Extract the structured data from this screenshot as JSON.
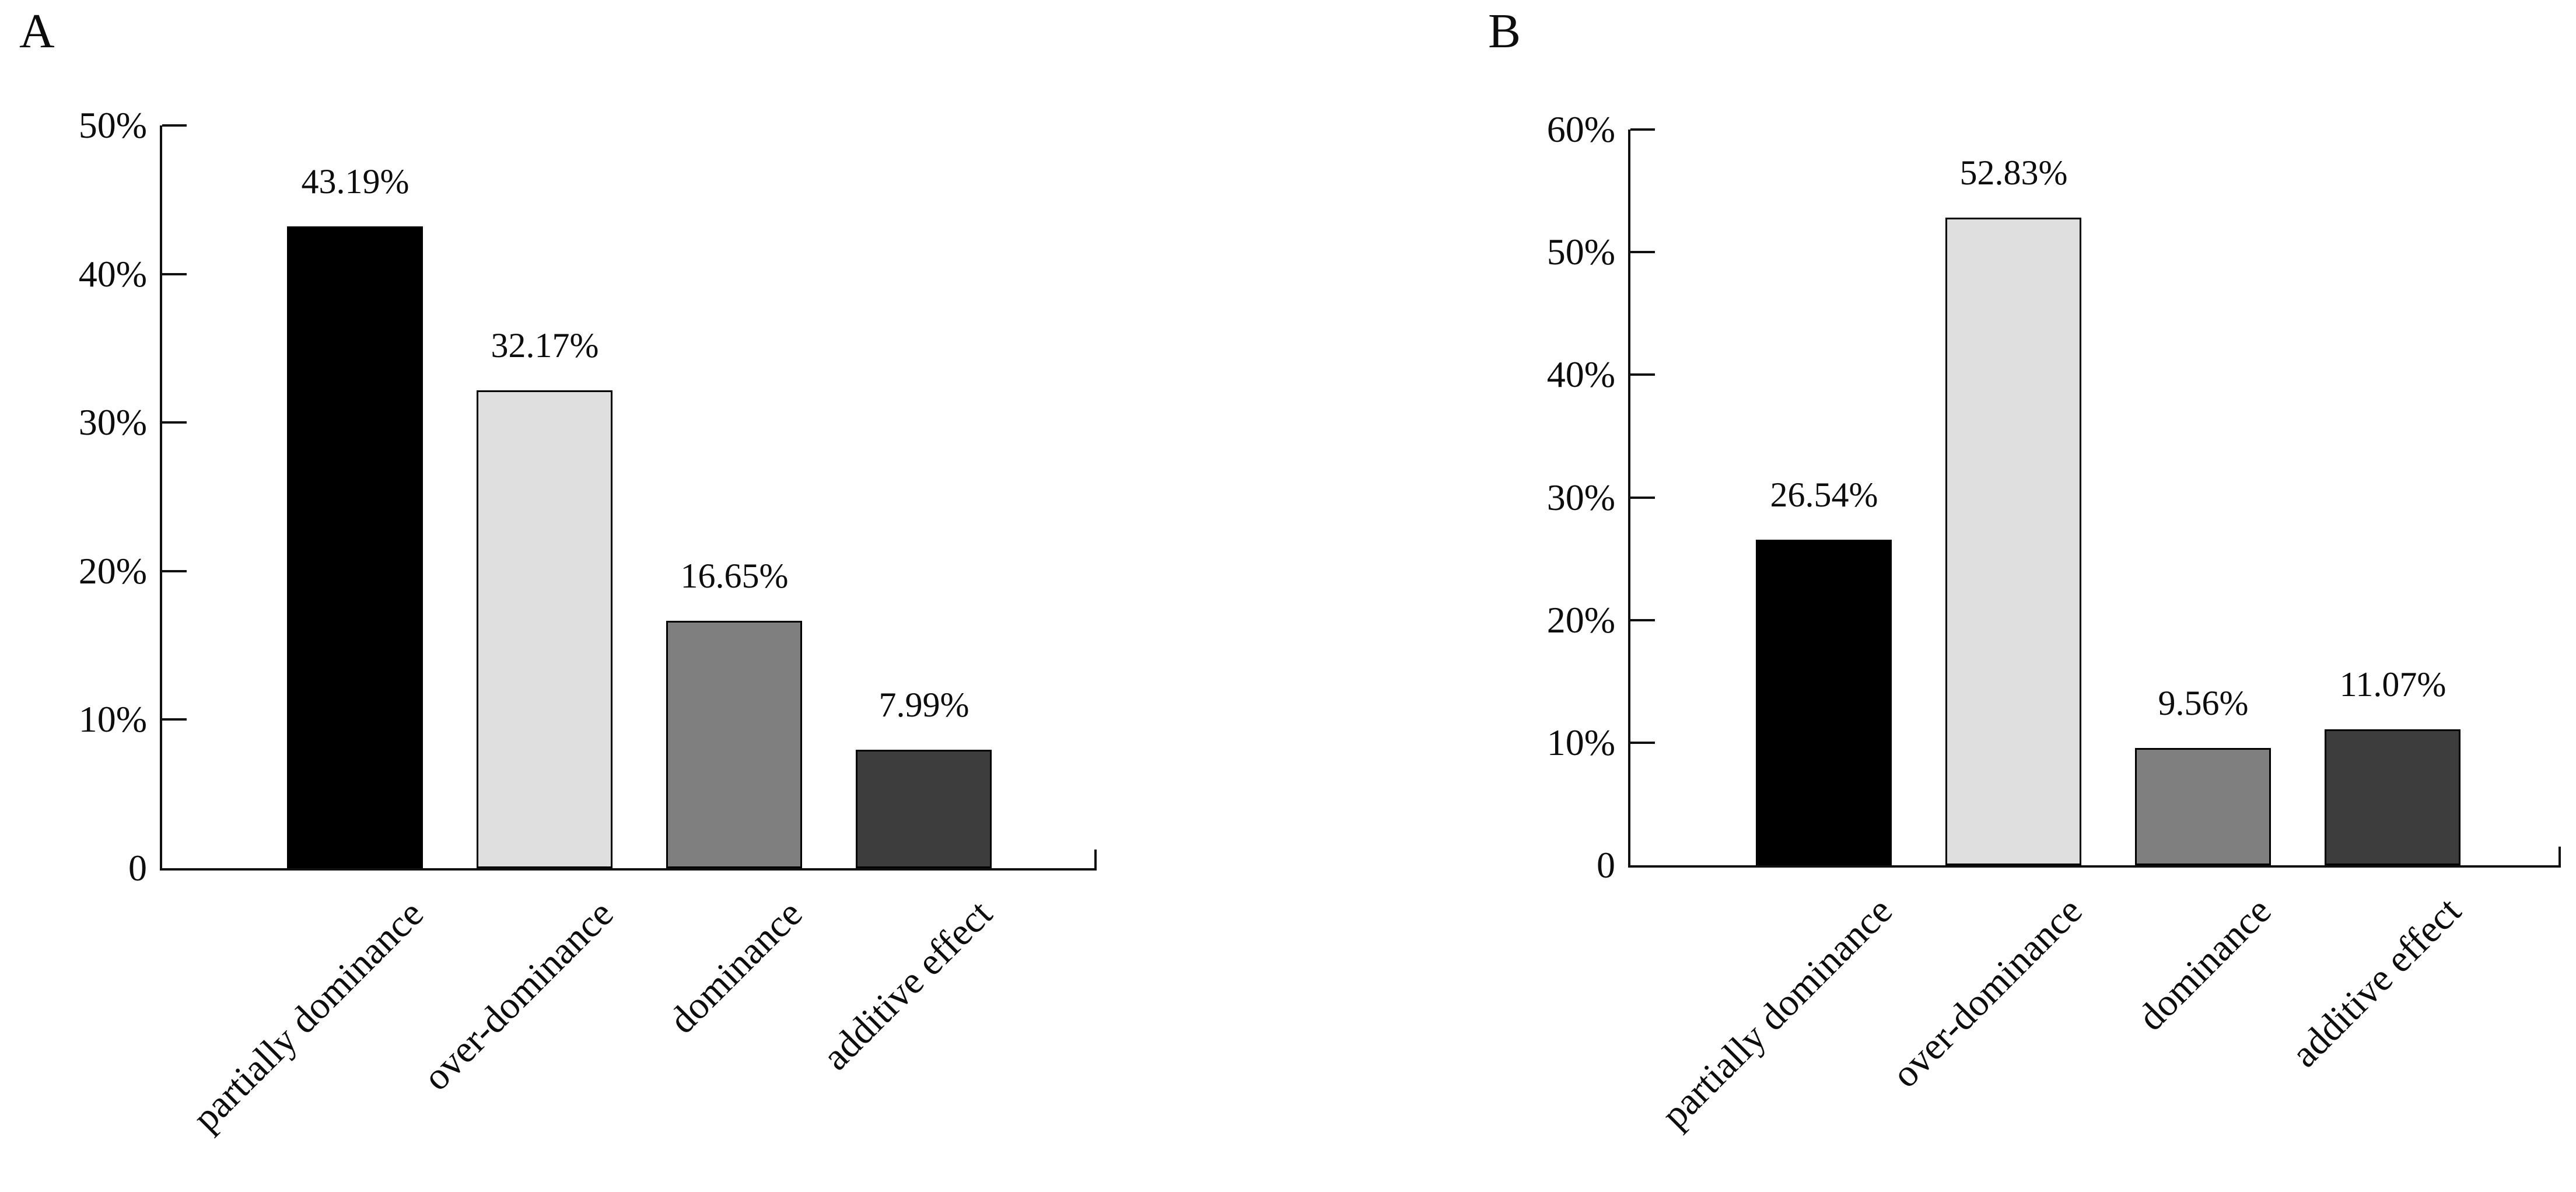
{
  "figure": {
    "background": "#ffffff",
    "text_color": "#0d0d0d",
    "axis_color": "#101010"
  },
  "chart_data": [
    {
      "type": "bar",
      "panel_label": "A",
      "title": "",
      "xlabel": "",
      "ylabel": "",
      "categories": [
        "partially dominance",
        "over-dominance",
        "dominance",
        "additive effect"
      ],
      "values": [
        43.19,
        32.17,
        16.65,
        7.99
      ],
      "value_labels": [
        "43.19%",
        "32.17%",
        "16.65%",
        "7.99%"
      ],
      "bar_colors": [
        "#000000",
        "#dfdfdf",
        "#7f7f7f",
        "#3d3d3d"
      ],
      "bar_border_color": "#000000",
      "ylim": [
        0,
        50
      ],
      "ytick_values": [
        50,
        40,
        30,
        20,
        10,
        0
      ],
      "ytick_labels": [
        "50%",
        "40%",
        "30%",
        "20%",
        "10%",
        "0"
      ],
      "grid": false,
      "legend": null
    },
    {
      "type": "bar",
      "panel_label": "B",
      "title": "",
      "xlabel": "",
      "ylabel": "",
      "categories": [
        "partially dominance",
        "over-dominance",
        "dominance",
        "additive effect"
      ],
      "values": [
        26.54,
        52.83,
        9.56,
        11.07
      ],
      "value_labels": [
        "26.54%",
        "52.83%",
        "9.56%",
        "11.07%"
      ],
      "bar_colors": [
        "#000000",
        "#dfdfdf",
        "#7f7f7f",
        "#3d3d3d"
      ],
      "bar_border_color": "#000000",
      "ylim": [
        0,
        60
      ],
      "ytick_values": [
        60,
        50,
        40,
        30,
        20,
        10,
        0
      ],
      "ytick_labels": [
        "60%",
        "50%",
        "40%",
        "30%",
        "20%",
        "10%",
        "0"
      ],
      "grid": false,
      "legend": null
    }
  ]
}
